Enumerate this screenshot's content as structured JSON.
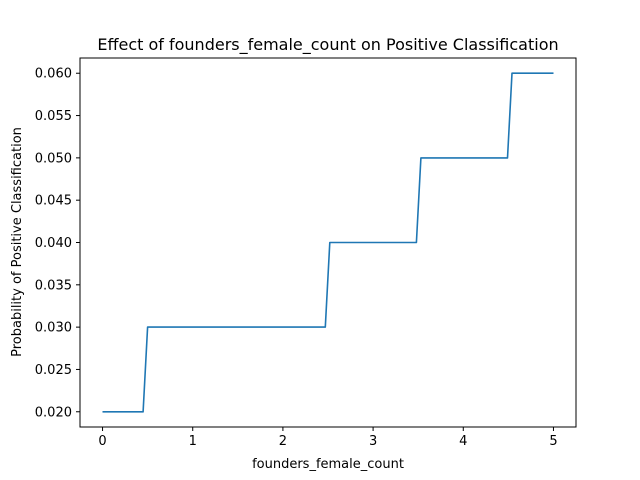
{
  "chart_data": {
    "type": "line",
    "title": "Effect of founders_female_count on Positive Classification",
    "xlabel": "founders_female_count",
    "ylabel": "Probability of Positive Classification",
    "xlim": [
      -0.25,
      5.25
    ],
    "ylim": [
      0.0182,
      0.0618
    ],
    "xticks": [
      0,
      1,
      2,
      3,
      4,
      5
    ],
    "xtick_labels": [
      "0",
      "1",
      "2",
      "3",
      "4",
      "5"
    ],
    "yticks": [
      0.02,
      0.025,
      0.03,
      0.035,
      0.04,
      0.045,
      0.05,
      0.055,
      0.06
    ],
    "ytick_labels": [
      "0.020",
      "0.025",
      "0.030",
      "0.035",
      "0.040",
      "0.045",
      "0.050",
      "0.055",
      "0.060"
    ],
    "grid": false,
    "series": [
      {
        "color": "#1f77b4",
        "x": [
          0,
          0.45,
          0.5,
          2.47,
          2.52,
          3.48,
          3.53,
          4.49,
          4.54,
          5
        ],
        "y": [
          0.02,
          0.02,
          0.03,
          0.03,
          0.04,
          0.04,
          0.05,
          0.05,
          0.06,
          0.06
        ]
      }
    ]
  }
}
